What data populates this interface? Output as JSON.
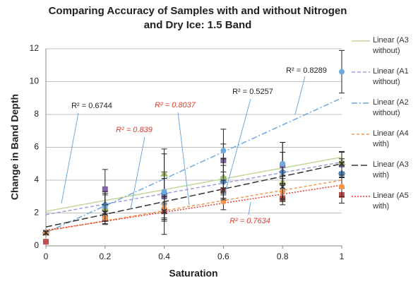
{
  "chart_data": {
    "type": "scatter",
    "title": "Comparing Accuracy of Samples with and without Nitrogen and Dry Ice: 1.5 Band",
    "x_label": "Saturation",
    "y_label": "Change in Band Depth",
    "xlim": [
      0,
      1
    ],
    "ylim": [
      0,
      12
    ],
    "xticks": [
      0,
      0.2,
      0.4,
      0.6,
      0.8,
      1
    ],
    "yticks": [
      0,
      2,
      4,
      6,
      8,
      10,
      12
    ],
    "grid": true,
    "x": [
      0,
      0.2,
      0.4,
      0.6,
      0.8,
      1
    ],
    "series": [
      {
        "color": "#c0504d",
        "marker": "square",
        "values": [
          0.25,
          1.65,
          2.1,
          3.4,
          2.9,
          3.1
        ],
        "errors": [
          0.1,
          0.3,
          0.4,
          0.5,
          0.4,
          0.5
        ]
      },
      {
        "color": "#8064a2",
        "marker": "square",
        "values": [
          0.8,
          3.45,
          3.0,
          5.2,
          4.9,
          4.95
        ],
        "errors": [
          0.1,
          1.2,
          1.5,
          1.0,
          0.8,
          0.8
        ]
      },
      {
        "color": "#9bbb59",
        "marker": "triangle",
        "values": [
          0.8,
          2.3,
          4.4,
          4.2,
          3.9,
          5.1
        ],
        "errors": [
          0.1,
          0.8,
          1.2,
          1.1,
          0.6,
          0.6
        ]
      },
      {
        "color": "#4f81bd",
        "marker": "diamond",
        "values": [
          0.8,
          2.5,
          3.2,
          3.9,
          4.5,
          4.4
        ],
        "errors": [
          0.1,
          0.7,
          0.9,
          1.0,
          1.8,
          0.9
        ]
      },
      {
        "color": "#6fa8dc",
        "marker": "circle",
        "values": [
          0.8,
          2.4,
          3.3,
          5.8,
          5.0,
          10.6
        ],
        "errors": [
          0.1,
          0.9,
          2.6,
          1.3,
          1.3,
          1.3
        ]
      },
      {
        "color": "#f79646",
        "marker": "circle",
        "values": [
          0.8,
          1.7,
          2.3,
          2.7,
          3.3,
          3.6
        ],
        "errors": [
          0.1,
          0.4,
          0.7,
          0.5,
          0.5,
          0.6
        ]
      },
      {
        "color": "#333333",
        "marker": "cross",
        "values": [
          0.8,
          2.0,
          2.1,
          3.4,
          3.6,
          5.0
        ],
        "errors": [
          0.1,
          0.5,
          0.5,
          0.6,
          0.7,
          0.7
        ]
      }
    ],
    "trendlines": [
      {
        "name": "Linear (A3 without)",
        "color": "#c4d79b",
        "dash": "none",
        "x": [
          0,
          1
        ],
        "values": [
          2.1,
          5.4
        ]
      },
      {
        "name": "Linear (A1 without)",
        "color": "#9f9fe0",
        "dash": "5 3",
        "x": [
          0,
          1
        ],
        "values": [
          1.9,
          5.1
        ]
      },
      {
        "name": "Linear (A2 without)",
        "color": "#6fa8dc",
        "dash": "8 3 2 3",
        "x": [
          0,
          1
        ],
        "values": [
          0.8,
          9.0
        ]
      },
      {
        "name": "Linear (A4 with)",
        "color": "#f79646",
        "dash": "4 3",
        "x": [
          0,
          1
        ],
        "values": [
          0.9,
          4.0
        ]
      },
      {
        "name": "Linear (A3 with)",
        "color": "#333333",
        "dash": "9 4",
        "x": [
          0,
          1
        ],
        "values": [
          1.15,
          5.0
        ]
      },
      {
        "name": "Linear (A5 with)",
        "color": "#e03c31",
        "dash": "2 2",
        "x": [
          0,
          1
        ],
        "values": [
          0.95,
          3.7
        ]
      }
    ],
    "annotations": [
      {
        "text": "R² = 0.6744",
        "color": "#222222",
        "italic": false
      },
      {
        "text": "R² = 0.839",
        "color": "#e03c31",
        "italic": true
      },
      {
        "text": "R² = 0.8037",
        "color": "#e03c31",
        "italic": true
      },
      {
        "text": "R² = 0.5257",
        "color": "#222222",
        "italic": false
      },
      {
        "text": "R² = 0.8289",
        "color": "#222222",
        "italic": false
      },
      {
        "text": "R² = 0.7634",
        "color": "#e03c31",
        "italic": true
      }
    ]
  }
}
